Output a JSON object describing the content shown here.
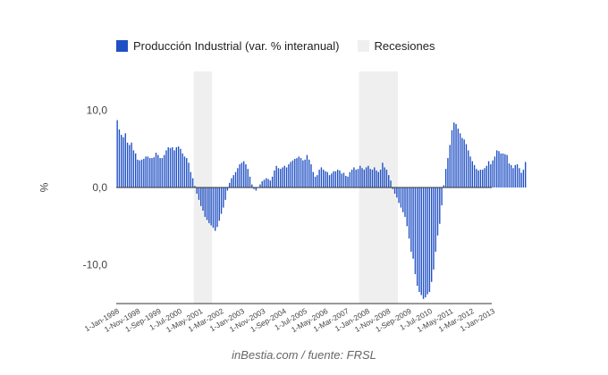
{
  "colors": {
    "bar": "#1f4fc4",
    "recession": "#efefef",
    "axis": "#333333",
    "text": "#444444"
  },
  "footer": "inBestia.com / fuente: FRSL",
  "chart_data": {
    "type": "bar",
    "ylabel": "%",
    "ylim": [
      -15,
      15
    ],
    "yticks": [
      10,
      0,
      -10
    ],
    "ytick_labels": [
      "10,0",
      "0,0",
      "-10,0"
    ],
    "legend": {
      "position": "top",
      "items": [
        {
          "name": "Producción Industrial (var. % interanual)",
          "kind": "bar"
        },
        {
          "name": "Recesiones",
          "kind": "band"
        }
      ]
    },
    "x_labels": [
      "1-Jan-1998",
      "1-Nov-1998",
      "1-Sep-1999",
      "1-Jul-2000",
      "1-May-2001",
      "1-Mar-2002",
      "1-Jan-2003",
      "1-Nov-2003",
      "1-Sep-2004",
      "1-Jul-2005",
      "1-May-2006",
      "1-Mar-2007",
      "1-Jan-2008",
      "1-Nov-2008",
      "1-Sep-2009",
      "1-Jul-2010",
      "1-May-2011",
      "1-Mar-2012",
      "1-Jan-2013"
    ],
    "start": "1998-01",
    "end": "2013-04",
    "recessions": [
      {
        "start": "2001-03",
        "end": "2001-11"
      },
      {
        "start": "2007-12",
        "end": "2009-06"
      }
    ],
    "series": [
      {
        "name": "Producción Industrial (var. % interanual)",
        "values": [
          8.7,
          7.5,
          6.8,
          6.5,
          7,
          5.8,
          5.5,
          5.8,
          4.8,
          4.4,
          3.6,
          3.5,
          3.6,
          3.7,
          4,
          4,
          3.8,
          3.8,
          3.9,
          4.5,
          4.2,
          3.8,
          3.8,
          4.2,
          4.8,
          5.2,
          5.1,
          5.2,
          4.8,
          5.2,
          5.3,
          5,
          4.4,
          4,
          3.8,
          3.2,
          2,
          1.2,
          0.2,
          -0.8,
          -1.6,
          -2.4,
          -3,
          -3.8,
          -4.2,
          -4.6,
          -4.9,
          -5.2,
          -5.6,
          -5.1,
          -4.3,
          -3.4,
          -2.6,
          -1.6,
          -0.4,
          0.6,
          1.2,
          1.6,
          2,
          2.5,
          3,
          3.2,
          3.4,
          3,
          2.4,
          1.4,
          0.4,
          -0.2,
          -0.4,
          0,
          0.4,
          0.8,
          1,
          1.2,
          1.1,
          0.9,
          1.4,
          2.2,
          2.8,
          2.5,
          2.4,
          2.6,
          2.8,
          2.6,
          3,
          3.3,
          3.5,
          3.7,
          3.8,
          4,
          3.8,
          3.5,
          3.6,
          4.2,
          3.6,
          3,
          2,
          1.4,
          1.6,
          2.3,
          2.6,
          2.3,
          2.1,
          2,
          1.6,
          1.8,
          2.1,
          2.1,
          2.3,
          2.2,
          1.8,
          1.9,
          1.5,
          1.4,
          2,
          2.3,
          2.6,
          2.3,
          2.4,
          2.8,
          2.5,
          2.3,
          2.6,
          2.8,
          2.4,
          2.3,
          2.6,
          2.2,
          2,
          2.3,
          3.2,
          2.6,
          2.3,
          1.6,
          0.9,
          -0.2,
          -0.8,
          -1.3,
          -2,
          -2.6,
          -3.2,
          -3.8,
          -5,
          -6.6,
          -8.3,
          -9.2,
          -11.2,
          -12.7,
          -13.5,
          -13.9,
          -14.4,
          -14.2,
          -13.8,
          -13.5,
          -12.2,
          -10.6,
          -8.3,
          -6.2,
          -4.7,
          -2.3,
          0.3,
          2.4,
          3.8,
          5.5,
          7.4,
          8.4,
          8.2,
          7.6,
          7,
          6.4,
          6.2,
          5.6,
          4.8,
          4,
          3.4,
          2.9,
          2.4,
          2.2,
          2.3,
          2.3,
          2.5,
          2.8,
          3.4,
          3,
          3.5,
          4,
          4.8,
          4.7,
          4.4,
          4.4,
          4.3,
          4.2,
          3.1,
          2.9,
          2.5,
          2.9,
          3,
          2.5,
          1.9,
          2.3,
          3.3
        ]
      }
    ]
  }
}
